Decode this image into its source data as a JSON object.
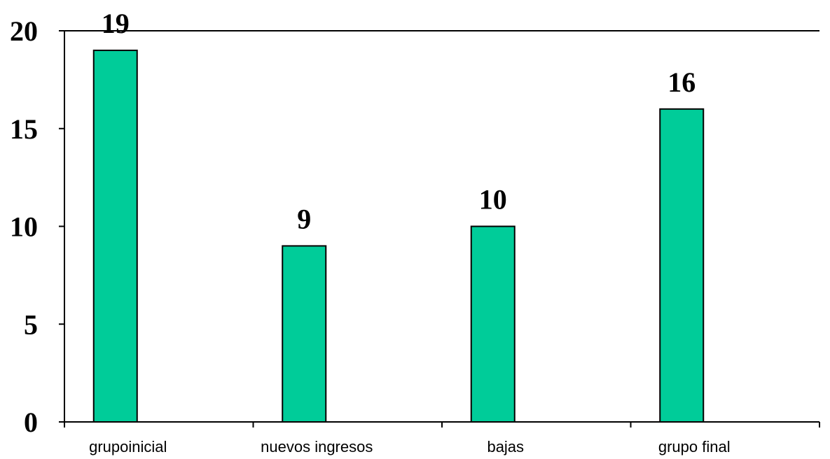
{
  "chart_data": {
    "type": "bar",
    "categories": [
      "grupoinicial",
      "nuevos ingresos",
      "bajas",
      "grupo final"
    ],
    "values": [
      19,
      9,
      10,
      16
    ],
    "data_labels": [
      "19",
      "9",
      "10",
      "16"
    ],
    "ylim": [
      0,
      20
    ],
    "yticks": [
      0,
      5,
      10,
      15,
      20
    ],
    "ytick_labels": [
      "0",
      "5",
      "10",
      "15",
      "20"
    ],
    "title": "",
    "xlabel": "",
    "ylabel": "",
    "bar_color": "#00CC99",
    "grid": false,
    "legend": "none"
  }
}
